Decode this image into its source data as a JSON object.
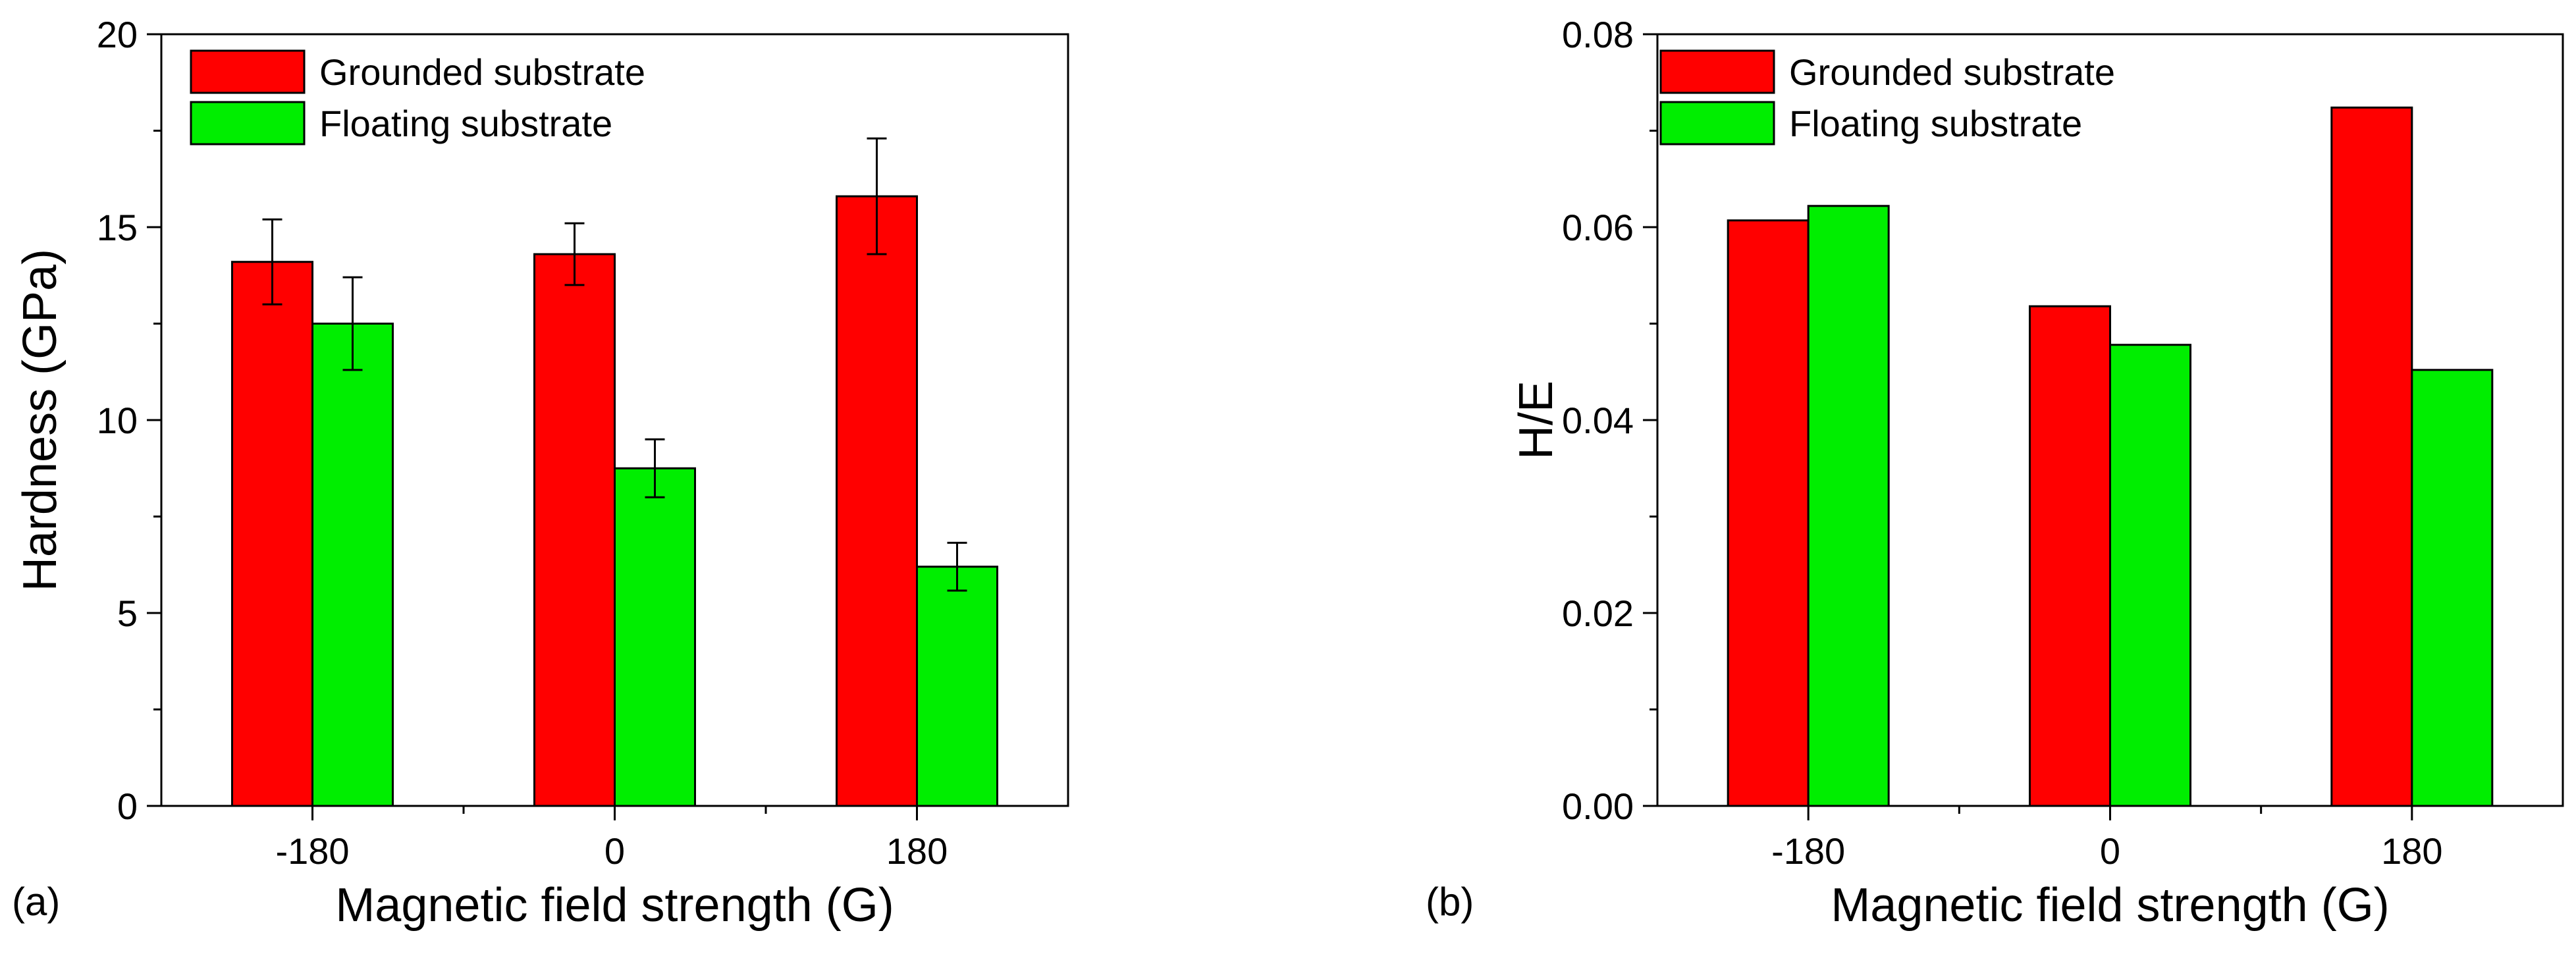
{
  "chart_data": [
    {
      "type": "bar",
      "panel_label": "(a)",
      "categories": [
        "-180",
        "0",
        "180"
      ],
      "series": [
        {
          "name": "Grounded substrate",
          "color": "#ff0000",
          "values": [
            14.1,
            14.3,
            15.8
          ],
          "errors": [
            1.1,
            0.8,
            1.5
          ]
        },
        {
          "name": "Floating substrate",
          "color": "#00ee00",
          "values": [
            12.5,
            8.75,
            6.2
          ],
          "errors": [
            1.2,
            0.75,
            0.62
          ]
        }
      ],
      "xlabel": "Magnetic field strength (G)",
      "ylabel": "Hardness (GPa)",
      "ylim": [
        0,
        20
      ],
      "yticks": [
        0,
        5,
        10,
        15,
        20
      ],
      "ytick_labels": [
        "0",
        "5",
        "10",
        "15",
        "20"
      ],
      "legend_position": "top-left"
    },
    {
      "type": "bar",
      "panel_label": "(b)",
      "categories": [
        "-180",
        "0",
        "180"
      ],
      "series": [
        {
          "name": "Grounded substrate",
          "color": "#ff0000",
          "values": [
            0.0607,
            0.0518,
            0.0724
          ]
        },
        {
          "name": "Floating substrate",
          "color": "#00ee00",
          "values": [
            0.0622,
            0.0478,
            0.0452
          ]
        }
      ],
      "xlabel": "Magnetic field strength (G)",
      "ylabel": "H/E",
      "ylim": [
        0,
        0.08
      ],
      "yticks": [
        0,
        0.02,
        0.04,
        0.06,
        0.08
      ],
      "ytick_labels": [
        "0.00",
        "0.02",
        "0.04",
        "0.06",
        "0.08"
      ],
      "legend_position": "top-left"
    }
  ]
}
